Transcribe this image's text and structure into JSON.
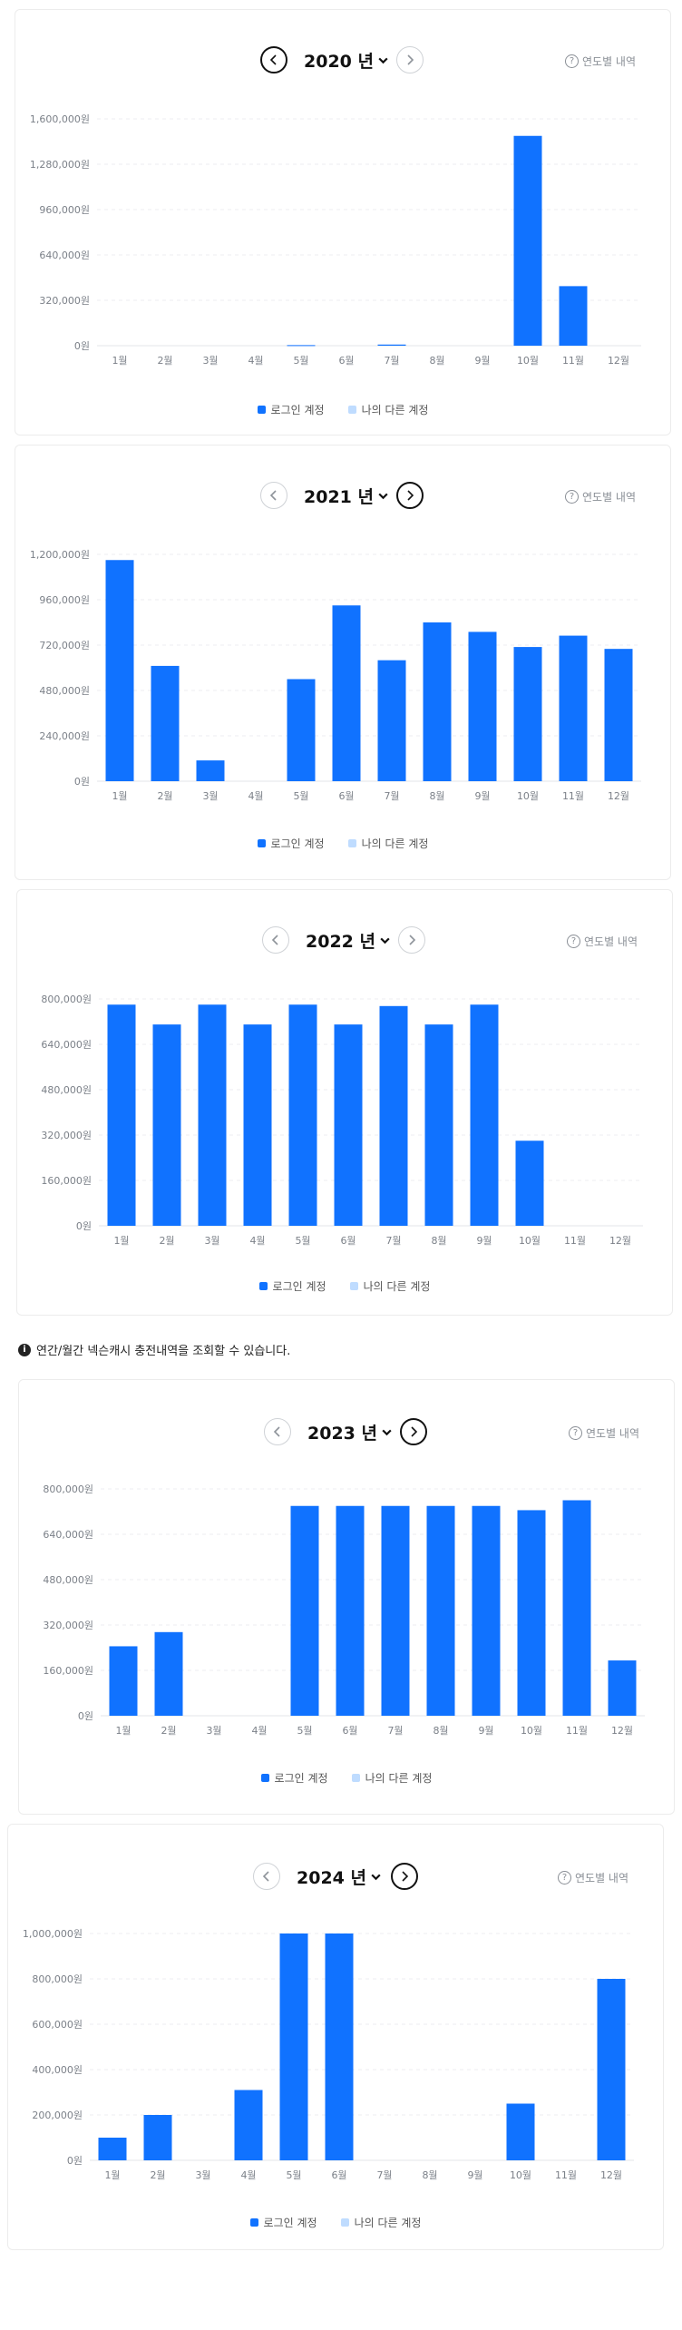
{
  "ui": {
    "annual_link": "연도별 내역",
    "notice": "연간/월간 넥슨캐시 충전내역을 조회할 수 있습니다.",
    "legend": [
      "로그인 계정",
      "나의 다른 계정"
    ],
    "colors": {
      "primary": "#1072ff",
      "secondary": "#bfdcff"
    }
  },
  "chart_data": [
    {
      "type": "bar",
      "year_label": "2020 년",
      "categories": [
        "1월",
        "2월",
        "3월",
        "4월",
        "5월",
        "6월",
        "7월",
        "8월",
        "9월",
        "10월",
        "11월",
        "12월"
      ],
      "series": [
        {
          "name": "로그인 계정",
          "values": [
            0,
            0,
            0,
            0,
            4000,
            0,
            8000,
            0,
            0,
            1480000,
            420000,
            0
          ]
        },
        {
          "name": "나의 다른 계정",
          "values": [
            0,
            0,
            0,
            0,
            0,
            0,
            0,
            0,
            0,
            0,
            0,
            0
          ]
        }
      ],
      "ylim": [
        0,
        1600000
      ],
      "yticks": [
        0,
        320000,
        640000,
        960000,
        1280000,
        1600000
      ],
      "ytick_labels": [
        "0원",
        "320,000원",
        "640,000원",
        "960,000원",
        "1,280,000원",
        "1,600,000원"
      ],
      "grid": true,
      "legend_position": "bottom"
    },
    {
      "type": "bar",
      "year_label": "2021 년",
      "categories": [
        "1월",
        "2월",
        "3월",
        "4월",
        "5월",
        "6월",
        "7월",
        "8월",
        "9월",
        "10월",
        "11월",
        "12월"
      ],
      "series": [
        {
          "name": "로그인 계정",
          "values": [
            1170000,
            610000,
            110000,
            0,
            540000,
            930000,
            640000,
            840000,
            790000,
            710000,
            770000,
            700000
          ]
        },
        {
          "name": "나의 다른 계정",
          "values": [
            0,
            0,
            0,
            0,
            0,
            0,
            0,
            0,
            0,
            0,
            0,
            0
          ]
        }
      ],
      "ylim": [
        0,
        1200000
      ],
      "yticks": [
        0,
        240000,
        480000,
        720000,
        960000,
        1200000
      ],
      "ytick_labels": [
        "0원",
        "240,000원",
        "480,000원",
        "720,000원",
        "960,000원",
        "1,200,000원"
      ],
      "grid": true,
      "legend_position": "bottom"
    },
    {
      "type": "bar",
      "year_label": "2022 년",
      "categories": [
        "1월",
        "2월",
        "3월",
        "4월",
        "5월",
        "6월",
        "7월",
        "8월",
        "9월",
        "10월",
        "11월",
        "12월"
      ],
      "series": [
        {
          "name": "로그인 계정",
          "values": [
            780000,
            710000,
            780000,
            710000,
            780000,
            710000,
            775000,
            710000,
            780000,
            300000,
            0,
            0
          ]
        },
        {
          "name": "나의 다른 계정",
          "values": [
            0,
            0,
            0,
            0,
            0,
            0,
            0,
            0,
            0,
            0,
            0,
            0
          ]
        }
      ],
      "ylim": [
        0,
        800000
      ],
      "yticks": [
        0,
        160000,
        320000,
        480000,
        640000,
        800000
      ],
      "ytick_labels": [
        "0원",
        "160,000원",
        "320,000원",
        "480,000원",
        "640,000원",
        "800,000원"
      ],
      "grid": true,
      "legend_position": "bottom"
    },
    {
      "type": "bar",
      "year_label": "2023 년",
      "categories": [
        "1월",
        "2월",
        "3월",
        "4월",
        "5월",
        "6월",
        "7월",
        "8월",
        "9월",
        "10월",
        "11월",
        "12월"
      ],
      "series": [
        {
          "name": "로그인 계정",
          "values": [
            245000,
            295000,
            0,
            0,
            740000,
            740000,
            740000,
            740000,
            740000,
            725000,
            760000,
            195000
          ]
        },
        {
          "name": "나의 다른 계정",
          "values": [
            0,
            0,
            0,
            0,
            0,
            0,
            0,
            0,
            0,
            0,
            0,
            0
          ]
        }
      ],
      "ylim": [
        0,
        800000
      ],
      "yticks": [
        0,
        160000,
        320000,
        480000,
        640000,
        800000
      ],
      "ytick_labels": [
        "0원",
        "160,000원",
        "320,000원",
        "480,000원",
        "640,000원",
        "800,000원"
      ],
      "grid": true,
      "legend_position": "bottom"
    },
    {
      "type": "bar",
      "year_label": "2024 년",
      "categories": [
        "1월",
        "2월",
        "3월",
        "4월",
        "5월",
        "6월",
        "7월",
        "8월",
        "9월",
        "10월",
        "11월",
        "12월"
      ],
      "series": [
        {
          "name": "로그인 계정",
          "values": [
            100000,
            200000,
            0,
            310000,
            1000000,
            1000000,
            0,
            0,
            0,
            250000,
            0,
            800000
          ]
        },
        {
          "name": "나의 다른 계정",
          "values": [
            0,
            0,
            0,
            0,
            0,
            0,
            0,
            0,
            0,
            0,
            0,
            0
          ]
        }
      ],
      "ylim": [
        0,
        1000000
      ],
      "yticks": [
        0,
        200000,
        400000,
        600000,
        800000,
        1000000
      ],
      "ytick_labels": [
        "0원",
        "200,000원",
        "400,000원",
        "600,000원",
        "800,000원",
        "1,000,000원"
      ],
      "grid": true,
      "legend_position": "bottom"
    }
  ]
}
